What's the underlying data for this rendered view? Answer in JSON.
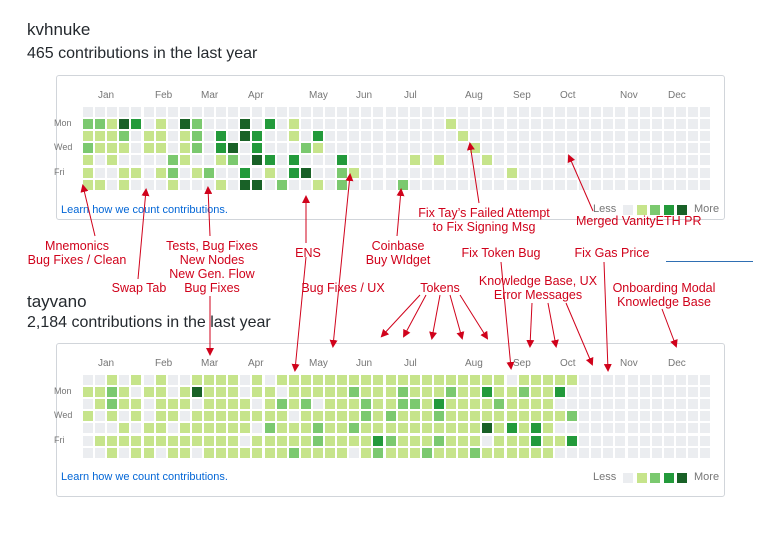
{
  "colors": {
    "empty": "#ebedf0",
    "level1": "#c6e48b",
    "level2": "#7bc96f",
    "level3": "#239a3b",
    "level4": "#196127",
    "annotation": "#d0021b",
    "link": "#0366d6"
  },
  "months": [
    "Jan",
    "Feb",
    "Mar",
    "Apr",
    "May",
    "Jun",
    "Jul",
    "Aug",
    "Sep",
    "Oct",
    "Nov",
    "Dec"
  ],
  "day_labels": [
    "Mon",
    "Wed",
    "Fri"
  ],
  "legend": {
    "less": "Less",
    "more": "More"
  },
  "profiles": [
    {
      "username": "kvhnuke",
      "contributions": "465 contributions in the last year",
      "learn_link": "Learn how we count contributions.",
      "grid": [
        "..........................................",
        "22143.1.42...4.3.1............1..........",
        "1112.11.12.3.43..1.3...........1.........",
        "2111.11.12.34.3...21............1........",
        "1.1....21..12.43.3...3.....1.1...1.......",
        "1..11.12.12..3.1.34..21............1.....",
        "11.1...1...1.44.2..1.2....2.............."
      ]
    },
    {
      "username": "tayvano",
      "contributions": "2,184 contributions in the last year",
      "learn_link": "Learn how we count contributions.",
      "grid": [
        "..1.1.1..1111.1.1111111111111111111.11111",
        "1121.11.14111.11.11111211121112113112113",
        ".1211.111.1111.1212.1112112213111121111",
        "1.1.1.11.11111111.11111212111211111111112",
        "...1.11.111111.211121121111111111413131",
        ".111111111111.1111121111321112111.1113113",
        "..1.11.11.111111121111.1211121112111111"
      ]
    }
  ],
  "annotations": {
    "mnemonics": "Mnemonics\nBug Fixes / Clean",
    "swap_tab": "Swap Tab",
    "tests": "Tests, Bug Fixes\nNew Nodes\nNew Gen. Flow\nBug Fixes",
    "ens": "ENS",
    "coinbase": "Coinbase\nBuy WIdget",
    "fix_tay": "Fix Tay’s Failed Attempt\nto Fix Signing Msg",
    "merged": "Merged VanityETH PR",
    "fix_token": "Fix Token Bug",
    "fix_gas": "Fix Gas Price",
    "bug_fixes_ux": "Bug Fixes / UX",
    "tokens": "Tokens",
    "knowledge_ux": "Knowledge Base, UX\nError Messages",
    "onboarding": "Onboarding Modal\nKnowledge Base"
  }
}
